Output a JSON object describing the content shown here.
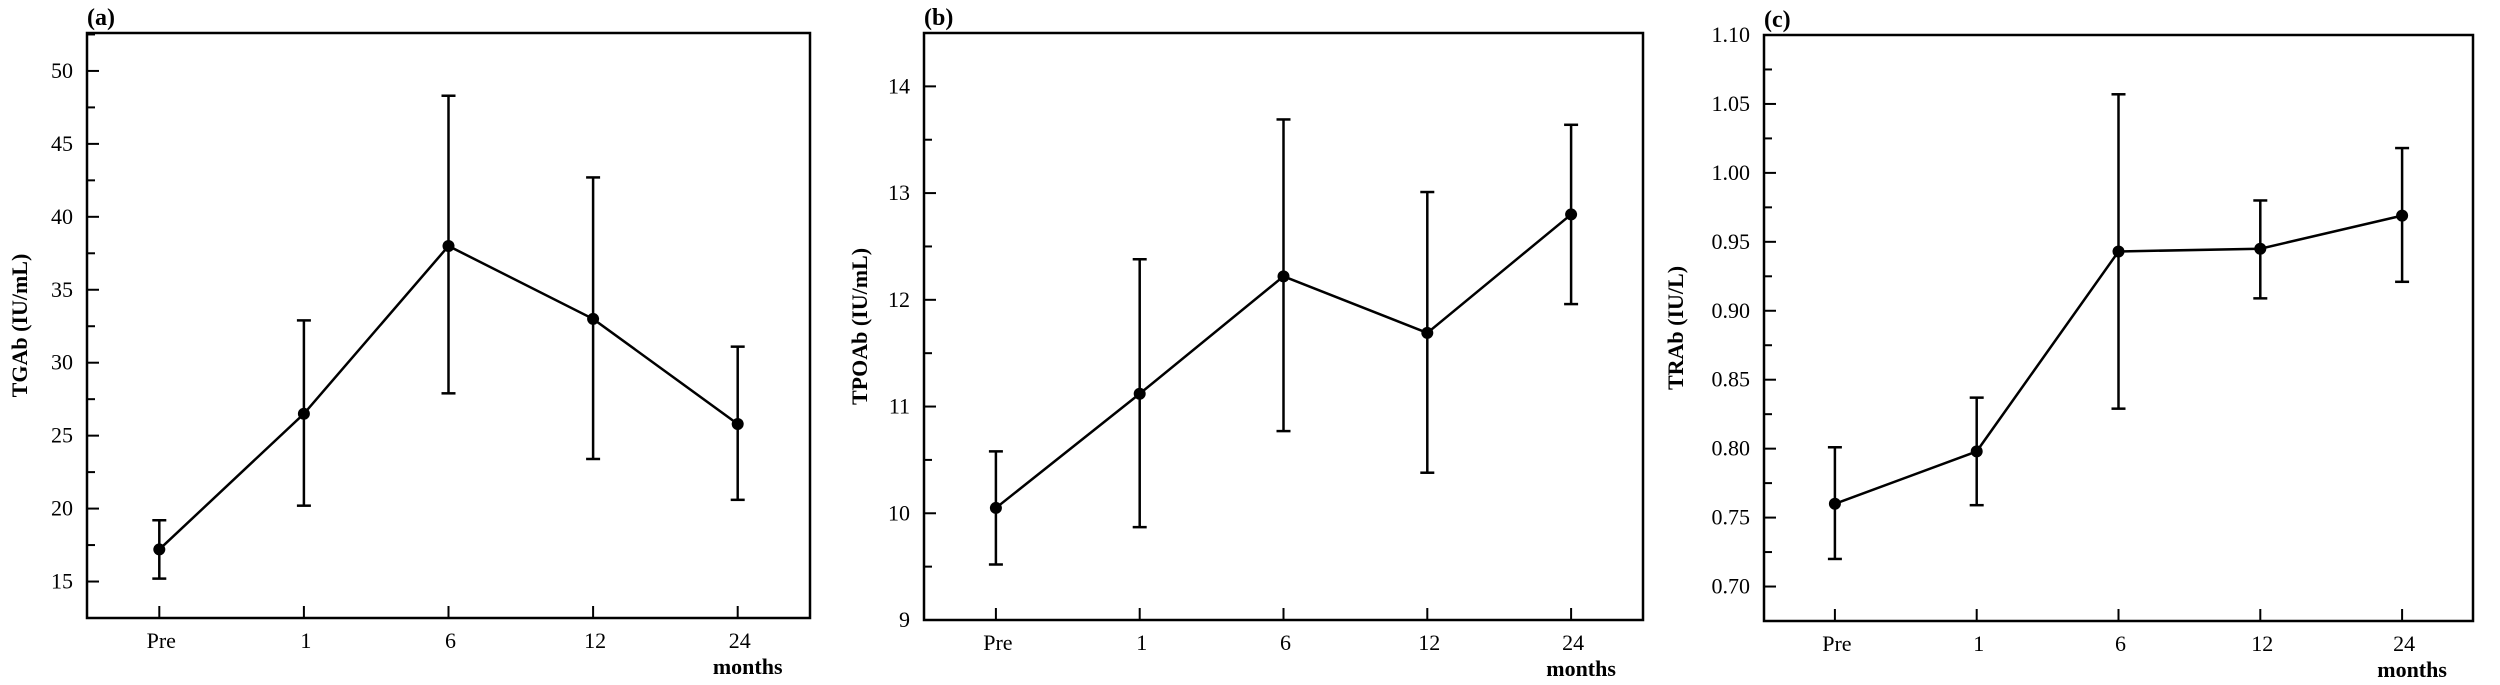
{
  "chart_data": [
    {
      "type": "line",
      "panel_label": "(a)",
      "ylabel": "TGAb (IU/mL)",
      "xlabel": "months",
      "categories": [
        "Pre",
        "1",
        "6",
        "12",
        "24"
      ],
      "ylim": [
        12.5,
        52.6
      ],
      "yticks": [
        "15",
        "20",
        "25",
        "30",
        "35",
        "40",
        "45",
        "50"
      ],
      "ytick_values": [
        15,
        20,
        25,
        30,
        35,
        40,
        45,
        50
      ],
      "minor_step": 2.5,
      "values": [
        17.2,
        26.5,
        38.0,
        33.0,
        25.8
      ],
      "error_low": [
        15.2,
        20.2,
        27.9,
        23.4,
        20.6
      ],
      "error_high": [
        19.2,
        32.9,
        48.3,
        42.7,
        31.1
      ],
      "grid": false
    },
    {
      "type": "line",
      "panel_label": "(b)",
      "ylabel": "TPOAb (IU/mL)",
      "xlabel": "months",
      "categories": [
        "Pre",
        "1",
        "6",
        "12",
        "24"
      ],
      "ylim": [
        9,
        14.5
      ],
      "yticks": [
        "9",
        "10",
        "11",
        "12",
        "13",
        "14"
      ],
      "ytick_values": [
        9,
        10,
        11,
        12,
        13,
        14
      ],
      "minor_step": 0.5,
      "values": [
        10.05,
        11.12,
        12.22,
        11.69,
        12.8
      ],
      "error_low": [
        9.52,
        9.87,
        10.77,
        10.38,
        11.96
      ],
      "error_high": [
        10.58,
        12.38,
        13.69,
        13.01,
        13.64
      ],
      "grid": false
    },
    {
      "type": "line",
      "panel_label": "(c)",
      "ylabel": "TRAb (IU/L)",
      "xlabel": "months",
      "categories": [
        "Pre",
        "1",
        "6",
        "12",
        "24"
      ],
      "ylim": [
        0.675,
        1.1
      ],
      "yticks": [
        "0.70",
        "0.75",
        "0.80",
        "0.85",
        "0.90",
        "0.95",
        "1.00",
        "1.05",
        "1.10"
      ],
      "ytick_values": [
        0.7,
        0.75,
        0.8,
        0.85,
        0.9,
        0.95,
        1.0,
        1.05,
        1.1
      ],
      "minor_step": 0.025,
      "values": [
        0.76,
        0.798,
        0.943,
        0.945,
        0.969
      ],
      "error_low": [
        0.72,
        0.759,
        0.829,
        0.909,
        0.921
      ],
      "error_high": [
        0.801,
        0.837,
        1.057,
        0.98,
        1.018
      ],
      "grid": false
    }
  ]
}
